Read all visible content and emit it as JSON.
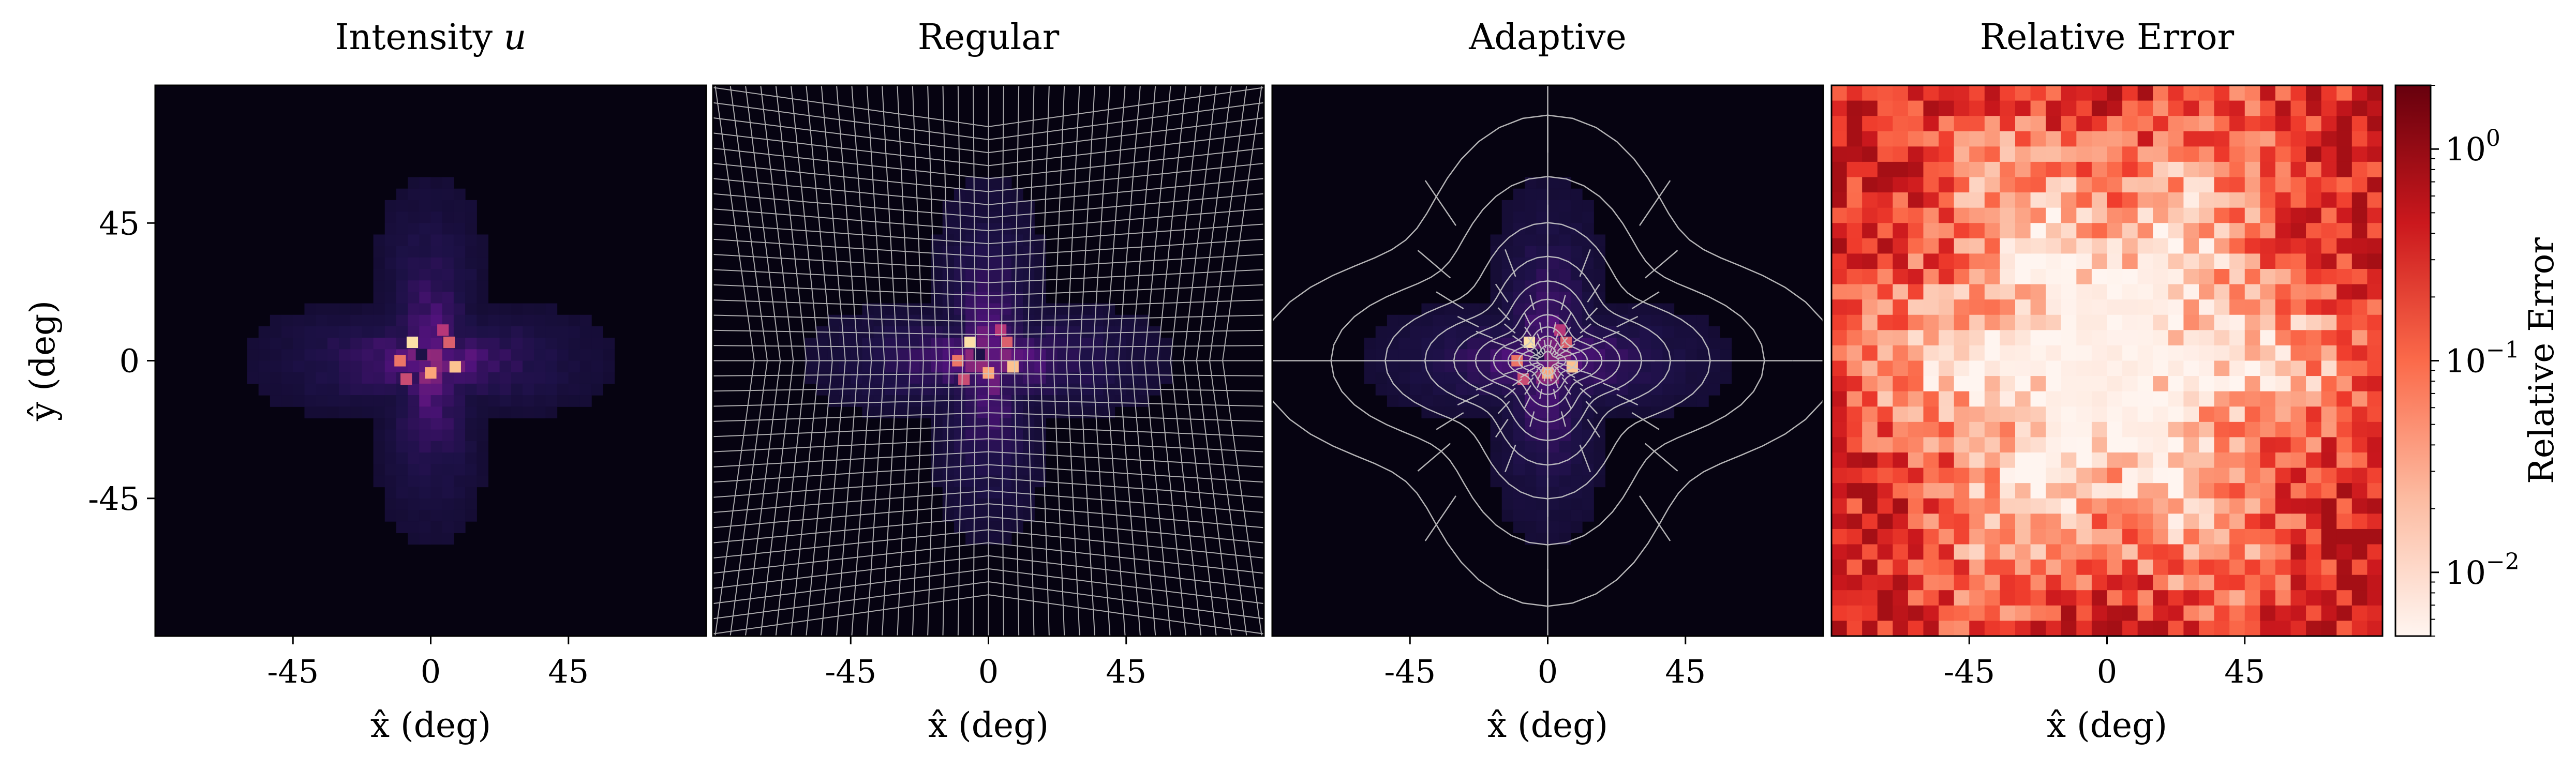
{
  "chart_data": [
    {
      "type": "heatmap",
      "panel": "intensity",
      "title": "Intensity u",
      "xlabel": "x̂ (deg)",
      "ylabel": "ŷ (deg)",
      "xlim": [
        -90,
        90
      ],
      "ylim": [
        -90,
        90
      ],
      "xticks": [
        -45,
        0,
        45
      ],
      "xtick_labels": [
        "-45",
        "0",
        "45"
      ],
      "yticks": [
        45,
        0,
        -45
      ],
      "ytick_labels": [
        "45",
        "0",
        "-45"
      ],
      "colormap": "magma",
      "description": "centered four-lobed intensity pattern, peak near origin",
      "grid": false
    },
    {
      "type": "heatmap",
      "panel": "regular",
      "title": "Regular",
      "xlabel": "x̂ (deg)",
      "xlim": [
        -90,
        90
      ],
      "ylim": [
        -90,
        90
      ],
      "xticks": [
        -45,
        0,
        45
      ],
      "xtick_labels": [
        "-45",
        "0",
        "45"
      ],
      "colormap": "magma",
      "mesh": "regular",
      "grid": true
    },
    {
      "type": "heatmap",
      "panel": "adaptive",
      "title": "Adaptive",
      "xlabel": "x̂ (deg)",
      "xlim": [
        -90,
        90
      ],
      "ylim": [
        -90,
        90
      ],
      "xticks": [
        -45,
        0,
        45
      ],
      "xtick_labels": [
        "-45",
        "0",
        "45"
      ],
      "colormap": "magma",
      "mesh": "adaptive",
      "grid": true
    },
    {
      "type": "heatmap",
      "panel": "relative-error",
      "title": "Relative Error",
      "xlabel": "x̂ (deg)",
      "xlim": [
        -90,
        90
      ],
      "ylim": [
        -90,
        90
      ],
      "xticks": [
        -45,
        0,
        45
      ],
      "xtick_labels": [
        "-45",
        "0",
        "45"
      ],
      "colormap": "Reds",
      "colorbar": {
        "label": "Relative Error",
        "scale": "log",
        "range": [
          0.005,
          2
        ],
        "ticks": [
          1,
          0.1,
          0.01
        ],
        "tick_base": "10",
        "tick_exponents": [
          "0",
          "−1",
          "−2"
        ]
      },
      "grid": false
    }
  ],
  "colors": {
    "magma_dark": "#000004",
    "magma_purple": "#51127c",
    "magma_pink": "#b73779",
    "magma_orange": "#fc8961",
    "magma_light": "#fcfdbf",
    "reds_light": "#fff5f0",
    "reds_mid": "#fb6a4a",
    "reds_dark": "#67000d",
    "mesh_line": "#c8c8c8"
  }
}
